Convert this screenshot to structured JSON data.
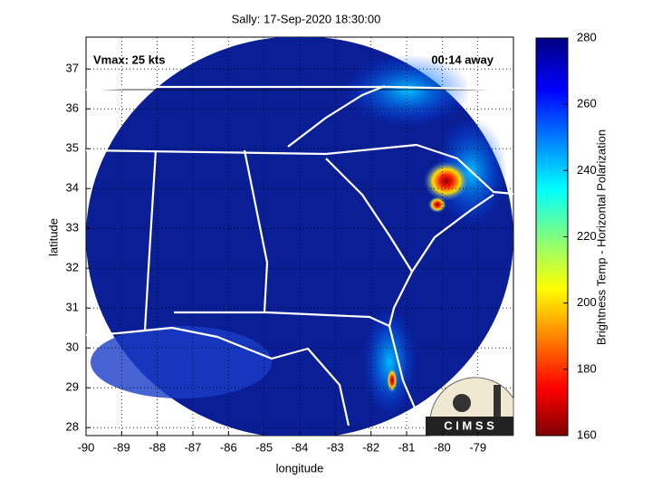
{
  "title": "Sally: 17-Sep-2020 18:30:00",
  "annotations": {
    "vmax": "Vmax: 25 kts",
    "away": "00:14 away"
  },
  "map": {
    "xlabel": "longitude",
    "ylabel": "latitude",
    "xlim": [
      -90,
      -78
    ],
    "ylim": [
      27.8,
      37.8
    ],
    "xticks": [
      -90,
      -89,
      -88,
      -87,
      -86,
      -85,
      -84,
      -83,
      -82,
      -81,
      -80,
      -79
    ],
    "yticks": [
      28,
      29,
      30,
      31,
      32,
      33,
      34,
      35,
      36,
      37
    ]
  },
  "colorbar": {
    "label": "Brightness Temp - Horizontal Polarization",
    "lim": [
      160,
      280
    ],
    "ticks": [
      160,
      180,
      200,
      220,
      240,
      260,
      280
    ]
  },
  "logo": "C I M S S"
}
